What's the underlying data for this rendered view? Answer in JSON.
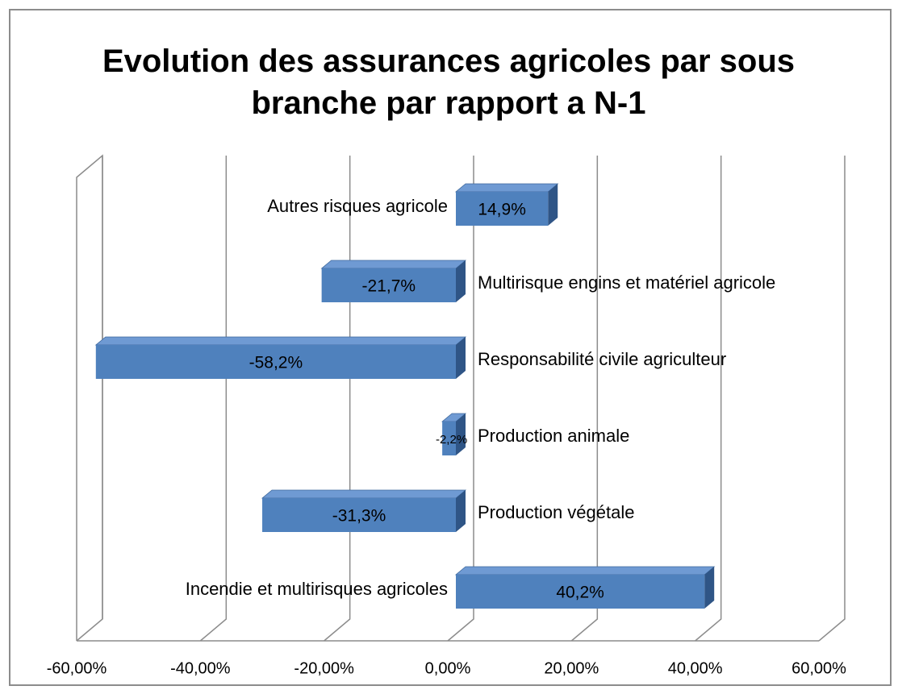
{
  "chart_data": {
    "type": "bar",
    "orientation": "horizontal",
    "title": "Evolution des assurances agricoles par sous branche par rapport a N-1",
    "categories": [
      "Autres risques agricole",
      "Multirisque engins et matériel agricole",
      "Responsabilité civile agriculteur",
      "Production animale",
      "Production végétale",
      "Incendie et multirisques agricoles"
    ],
    "values": [
      14.9,
      -21.7,
      -58.2,
      -2.2,
      -31.3,
      40.2
    ],
    "value_labels": [
      "14,9%",
      "-21,7%",
      "-58,2%",
      "-2,2%",
      "-31,3%",
      "40,2%"
    ],
    "color": "#4f81bd",
    "xlim": [
      -60,
      60
    ],
    "xticks": [
      {
        "value": -60,
        "label": "-60,00%"
      },
      {
        "value": -40,
        "label": "-40,00%"
      },
      {
        "value": -20,
        "label": "-20,00%"
      },
      {
        "value": 0,
        "label": "0,00%"
      },
      {
        "value": 20,
        "label": "20,00%"
      },
      {
        "value": 40,
        "label": "40,00%"
      },
      {
        "value": 60,
        "label": "60,00%"
      }
    ],
    "grid": true
  }
}
